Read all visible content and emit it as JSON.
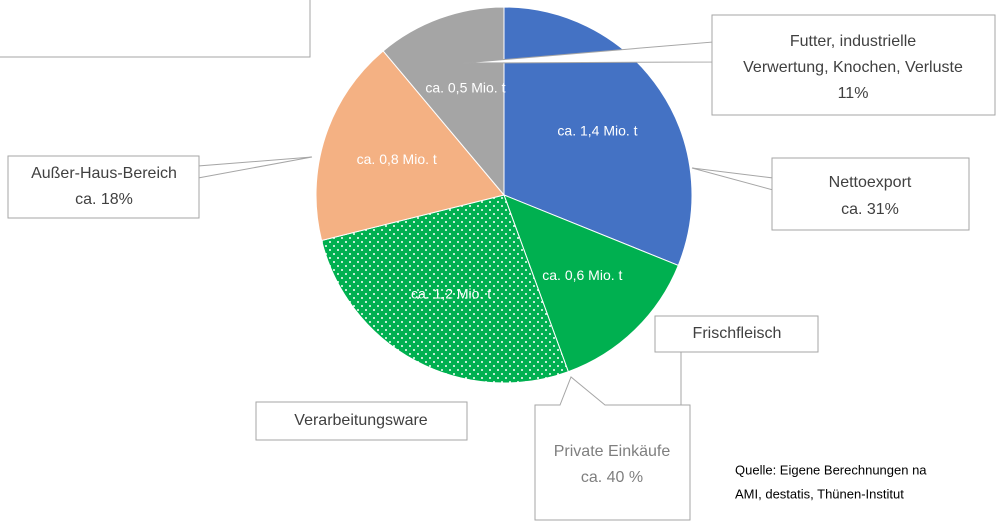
{
  "chart_data": {
    "type": "pie",
    "categories": [
      "Nettoexport",
      "Frischfleisch",
      "Verarbeitungsware",
      "Außer-Haus-Bereich",
      "Futter, industrielle Verwertung, Knochen, Verluste"
    ],
    "values": [
      1.4,
      0.6,
      1.2,
      0.8,
      0.5
    ],
    "value_labels": [
      "ca. 1,4 Mio. t",
      "ca. 0,6 Mio. t",
      "ca. 1,2 Mio. t",
      "ca. 0,8 Mio. t",
      "ca. 0,5 Mio. t"
    ],
    "colors": [
      "#4472c4",
      "#00b050",
      "#00b050",
      "#f4b183",
      "#a5a5a5"
    ],
    "slice_patterns": [
      null,
      null,
      "dots",
      null,
      null
    ],
    "annotations": {
      "futter": [
        "Futter, industrielle",
        "Verwertung, Knochen, Verluste",
        "11%"
      ],
      "nettoexport": [
        "Nettoexport",
        "ca. 31%"
      ],
      "ausser_haus": [
        "Außer-Haus-Bereich",
        "ca. 18%"
      ],
      "frischfleisch": "Frischfleisch",
      "verarbeitungsware": "Verarbeitungsware",
      "private": [
        "Private Einkäufe",
        "ca. 40 %"
      ]
    },
    "source": [
      "Quelle: Eigene Berechnungen na",
      "AMI, destatis, Thünen-Institut"
    ]
  }
}
